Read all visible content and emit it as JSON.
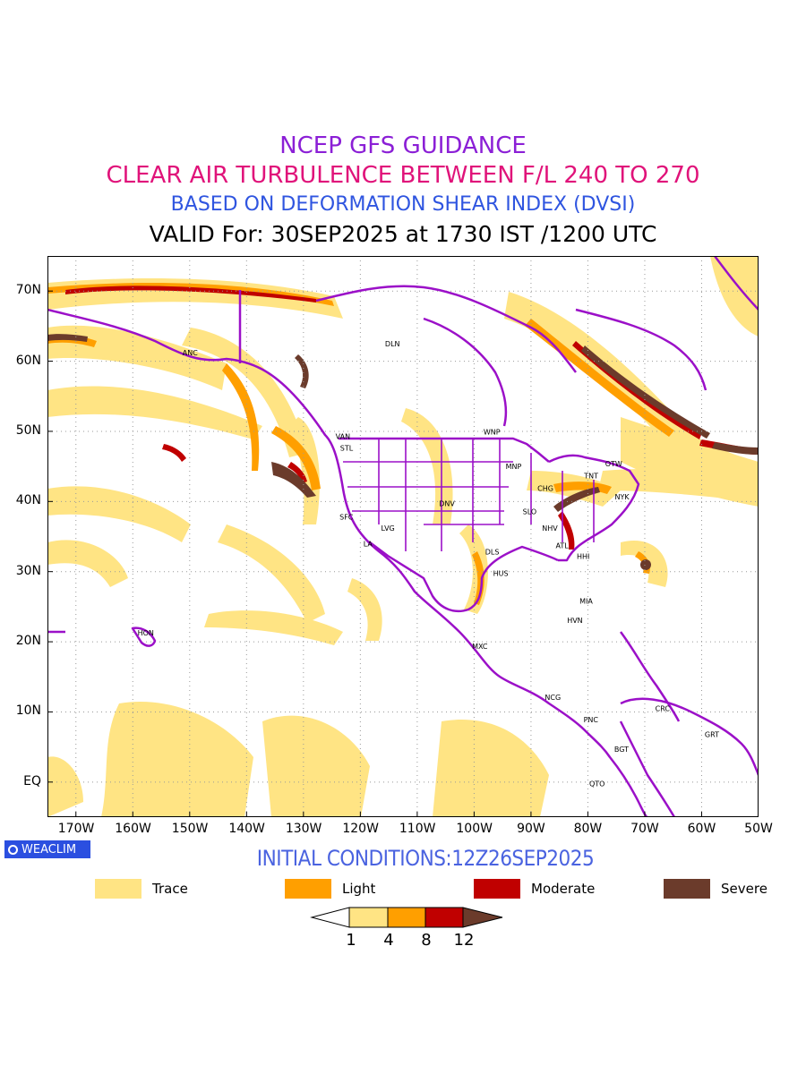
{
  "header": {
    "line1": "NCEP GFS GUIDANCE",
    "line2": "CLEAR AIR TURBULENCE BETWEEN F/L 240 TO 270",
    "line3": "BASED ON DEFORMATION SHEAR INDEX (DVSI)",
    "line4": "VALID For: 30SEP2025 at 1730 IST /1200 UTC"
  },
  "colors": {
    "line1": "#8b1fd6",
    "line2": "#e0137a",
    "line3": "#2f55e0",
    "trace": "#ffe484",
    "light": "#ff9f00",
    "moderate": "#c00000",
    "severe": "#6b3b2b",
    "borders": "#9b10c8",
    "initcond": "#4a63e0"
  },
  "axes": {
    "lon_labels": [
      "170W",
      "160W",
      "150W",
      "140W",
      "130W",
      "120W",
      "110W",
      "100W",
      "90W",
      "80W",
      "70W",
      "60W",
      "50W"
    ],
    "lat_labels": [
      "70N",
      "60N",
      "50N",
      "40N",
      "30N",
      "20N",
      "10N",
      "EQ"
    ],
    "lon_range": [
      -175,
      -50
    ],
    "lat_range": [
      -5,
      75
    ]
  },
  "stations": [
    {
      "name": "ANC",
      "lon": -150,
      "lat": 61.2
    },
    {
      "name": "DLN",
      "lon": -114.4,
      "lat": 62.5
    },
    {
      "name": "VAN",
      "lon": -123.1,
      "lat": 49.3
    },
    {
      "name": "STL",
      "lon": -122.3,
      "lat": 47.6
    },
    {
      "name": "SFC",
      "lon": -122.4,
      "lat": 37.8
    },
    {
      "name": "LA",
      "lon": -118.2,
      "lat": 34.0
    },
    {
      "name": "LVG",
      "lon": -115.1,
      "lat": 36.2
    },
    {
      "name": "DNV",
      "lon": -104.9,
      "lat": 39.7
    },
    {
      "name": "WNP",
      "lon": -97.1,
      "lat": 49.9
    },
    {
      "name": "MNP",
      "lon": -93.2,
      "lat": 45.0
    },
    {
      "name": "CHG",
      "lon": -87.6,
      "lat": 41.9
    },
    {
      "name": "SLO",
      "lon": -90.2,
      "lat": 38.6
    },
    {
      "name": "TNT",
      "lon": -79.4,
      "lat": 43.7
    },
    {
      "name": "OTW",
      "lon": -75.7,
      "lat": 45.4
    },
    {
      "name": "NYK",
      "lon": -74.0,
      "lat": 40.7
    },
    {
      "name": "NHV",
      "lon": -86.8,
      "lat": 36.2
    },
    {
      "name": "ATL",
      "lon": -84.4,
      "lat": 33.7
    },
    {
      "name": "HHI",
      "lon": -80.7,
      "lat": 32.2
    },
    {
      "name": "DLS",
      "lon": -96.8,
      "lat": 32.8
    },
    {
      "name": "HUS",
      "lon": -95.4,
      "lat": 29.8
    },
    {
      "name": "MIA",
      "lon": -80.2,
      "lat": 25.8
    },
    {
      "name": "HVN",
      "lon": -82.4,
      "lat": 23.1
    },
    {
      "name": "MXC",
      "lon": -99.1,
      "lat": 19.4
    },
    {
      "name": "HON",
      "lon": -157.9,
      "lat": 21.3
    },
    {
      "name": "NCG",
      "lon": -86.3,
      "lat": 12.1
    },
    {
      "name": "PNC",
      "lon": -79.5,
      "lat": 8.9
    },
    {
      "name": "CRC",
      "lon": -66.9,
      "lat": 10.5
    },
    {
      "name": "GRT",
      "lon": -58.2,
      "lat": 6.8
    },
    {
      "name": "BGT",
      "lon": -74.1,
      "lat": 4.7
    },
    {
      "name": "QTO",
      "lon": -78.5,
      "lat": -0.2
    }
  ],
  "brand": "WEACLIM",
  "footer": {
    "initial_conditions": "INITIAL CONDITIONS:12Z26SEP2025"
  },
  "legend": [
    {
      "label": "Trace",
      "color": "#ffe484"
    },
    {
      "label": "Light",
      "color": "#ff9f00"
    },
    {
      "label": "Moderate",
      "color": "#c00000"
    },
    {
      "label": "Severe",
      "color": "#6b3b2b"
    }
  ],
  "colorbar": {
    "ticks": [
      "1",
      "4",
      "8",
      "12"
    ]
  }
}
